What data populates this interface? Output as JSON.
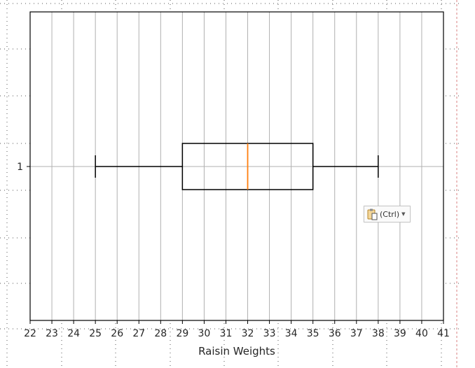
{
  "chart_data": {
    "type": "boxplot",
    "orientation": "horizontal",
    "xlabel": "Raisin Weights",
    "xlim": [
      22,
      41
    ],
    "x_ticks": [
      "22",
      "23",
      "24",
      "25",
      "26",
      "27",
      "28",
      "29",
      "30",
      "31",
      "32",
      "33",
      "34",
      "35",
      "36",
      "37",
      "38",
      "39",
      "40",
      "41"
    ],
    "y_ticks": [
      "1"
    ],
    "grid": true,
    "series": [
      {
        "position": 1,
        "whisker_low": 25,
        "q1": 29,
        "median": 32,
        "q3": 35,
        "whisker_high": 38
      }
    ],
    "colors": {
      "box": "#000000",
      "median": "#ff7f0e",
      "grid": "#b0b0b0"
    }
  },
  "paste_options": {
    "label": "(Ctrl)",
    "icon": "clipboard-icon"
  }
}
